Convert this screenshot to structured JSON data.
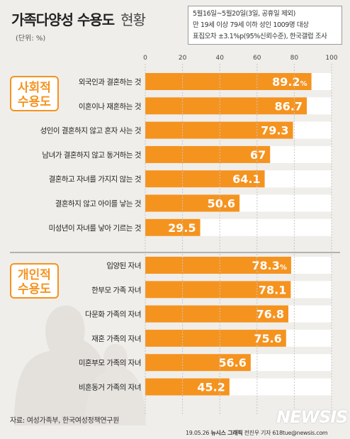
{
  "header": {
    "title_main": "가족다양성 수용도",
    "title_sub": "현황",
    "unit": "(단위: %)"
  },
  "info_box": {
    "line1": "5월16일~5월20일(3일, 공휴일 제외)",
    "line2": "만 19세 이상 79세 이하 성인 1009명 대상",
    "line3": "표집오차 ±3.1%p(95%신뢰수준), 한국갤럽 조사"
  },
  "footer": {
    "source": "자료: 여성가족부, 한국여성정책연구원",
    "credit_date": "19.05.26",
    "credit_org": "뉴시스 그래픽",
    "credit_author": "전진우 기자 618tue@newsis.com",
    "watermark": "NEWSIS"
  },
  "colors": {
    "bar": "#f5931f",
    "bar_track": "#ffffff",
    "group_border": "#f5931f",
    "group_text": "#f5931f",
    "background": "#f0eeea"
  },
  "chart_data": {
    "type": "bar",
    "orientation": "horizontal",
    "xlim": [
      0,
      100
    ],
    "ticks": [
      0,
      20,
      40,
      60,
      80,
      100
    ],
    "groups": [
      {
        "name": "사회적 수용도",
        "categories": [
          "외국인과 결혼하는 것",
          "이혼이나 재혼하는 것",
          "성인이 결혼하지 않고 혼자 사는 것",
          "남녀가 결혼하지 않고 동거하는 것",
          "결혼하고 자녀를 가지지 않는 것",
          "결혼하지 않고 아이를 낳는 것",
          "미성년이 자녀를 낳아 기르는 것"
        ],
        "values": [
          89.2,
          86.7,
          79.3,
          67,
          64.1,
          50.6,
          29.5
        ],
        "labels": [
          "89.2%",
          "86.7",
          "79.3",
          "67",
          "64.1",
          "50.6",
          "29.5"
        ]
      },
      {
        "name": "개인적 수용도",
        "categories": [
          "입양된 자녀",
          "한부모 가족 자녀",
          "다문화 가족의 자녀",
          "재혼 가족의 자녀",
          "미혼부모 가족의 자녀",
          "비혼동거 가족의 자녀"
        ],
        "values": [
          78.3,
          78.1,
          76.8,
          75.6,
          56.6,
          45.2
        ],
        "labels": [
          "78.3%",
          "78.1",
          "76.8",
          "75.6",
          "56.6",
          "45.2"
        ]
      }
    ]
  }
}
